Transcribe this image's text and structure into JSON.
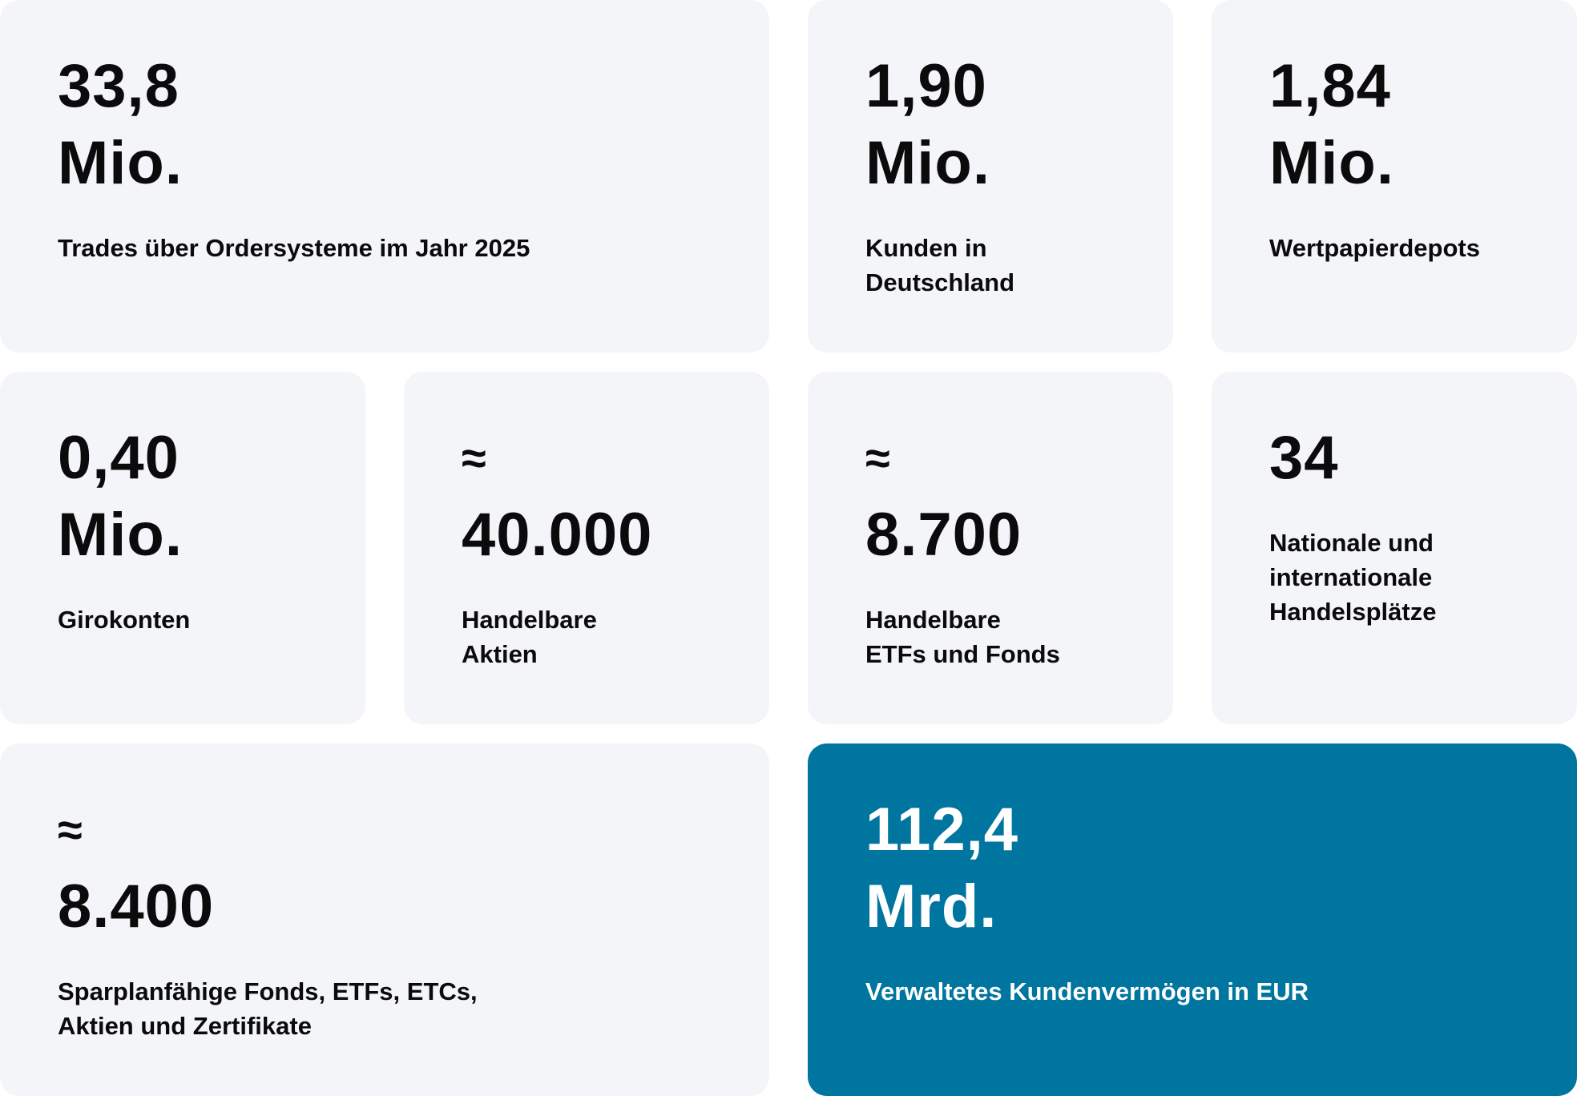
{
  "stats": {
    "trades": {
      "line1": "33,8",
      "line2": "Mio.",
      "label_line1": "Trades über Ordersysteme im Jahr 2025",
      "label_line2": ""
    },
    "customers": {
      "line1": "1,90",
      "line2": "Mio.",
      "label_line1": "Kunden in",
      "label_line2": "Deutschland"
    },
    "depots": {
      "line1": "1,84",
      "line2": "Mio.",
      "label_line1": "Wertpapierdepots",
      "label_line2": ""
    },
    "giro": {
      "line1": "0,40",
      "line2": "Mio.",
      "label_line1": "Girokonten",
      "label_line2": ""
    },
    "shares": {
      "line1": "≈",
      "line2": "40.000",
      "label_line1": "Handelbare",
      "label_line2": "Aktien"
    },
    "etfs": {
      "line1": "≈",
      "line2": "8.700",
      "label_line1": "Handelbare",
      "label_line2": "ETFs und Fonds"
    },
    "venues": {
      "line1": "34",
      "label_line1": "Nationale und",
      "label_line2": "internationale",
      "label_line3": "Handelsplätze"
    },
    "savings": {
      "line1": "≈",
      "line2": "8.400",
      "label_line1": "Sparplanfähige Fonds, ETFs, ETCs,",
      "label_line2": "Aktien und Zertifikate"
    },
    "assets": {
      "line1": "112,4",
      "line2": "Mrd.",
      "label_line1": "Verwaltetes Kundenvermögen in EUR",
      "label_line2": ""
    }
  },
  "colors": {
    "card_background": "#f4f5f9",
    "accent_background": "#0075a0",
    "text": "#0b0b0b",
    "accent_text": "#ffffff"
  }
}
